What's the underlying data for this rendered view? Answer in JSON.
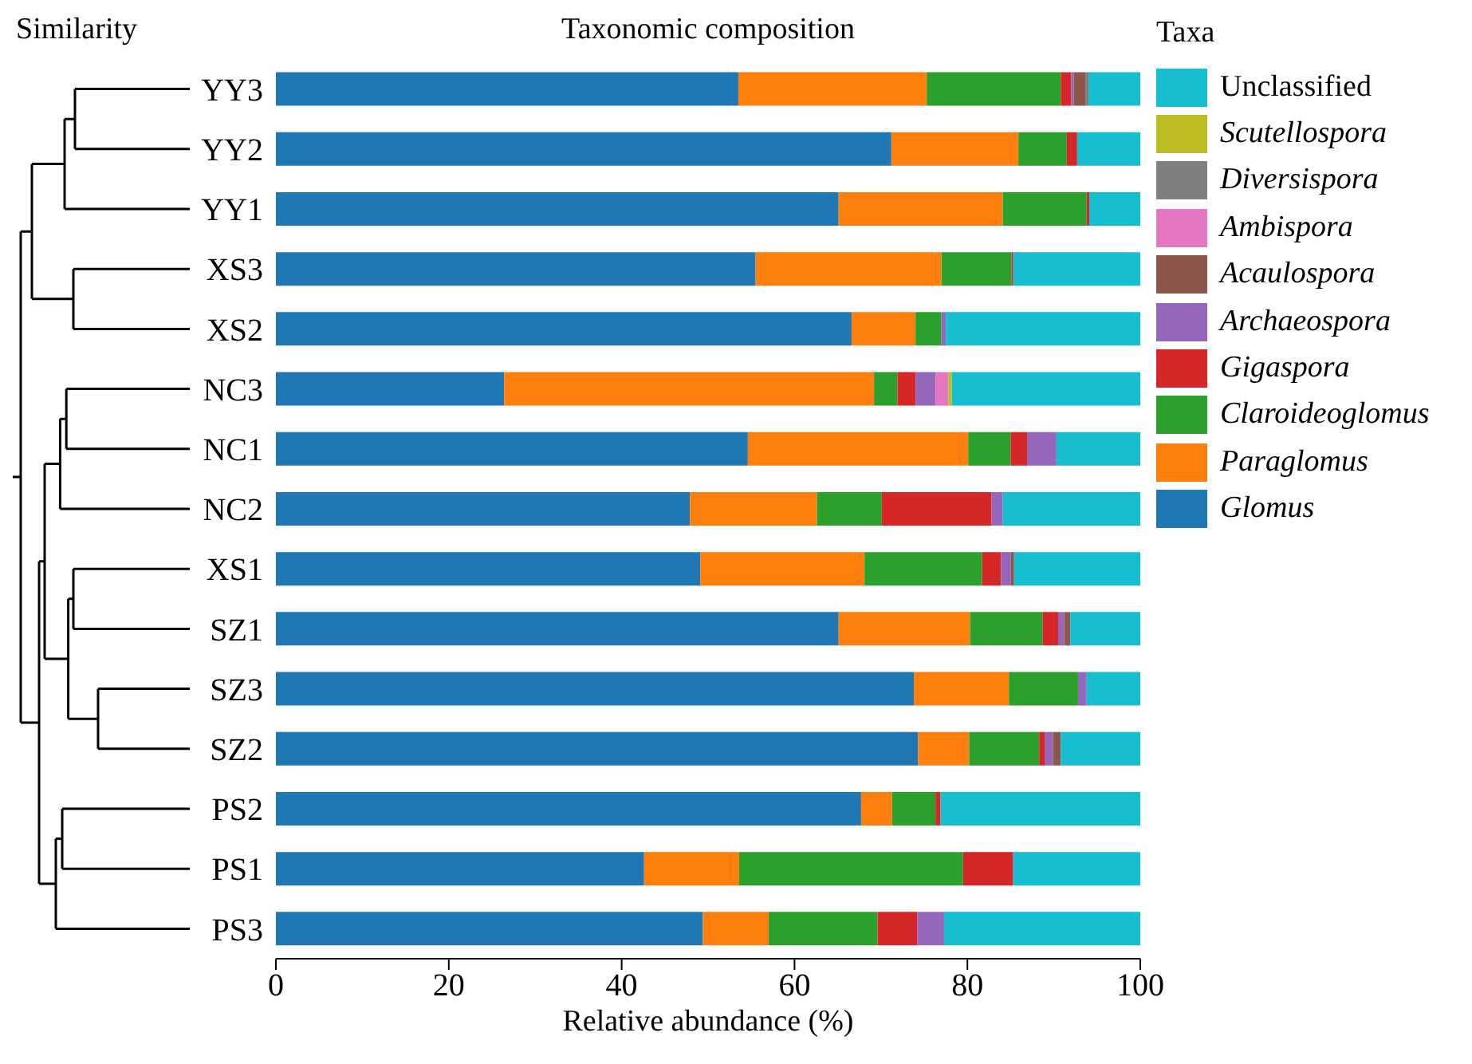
{
  "chart_data": {
    "type": "bar",
    "orientation": "horizontal",
    "stacked": true,
    "title": "Taxonomic composition",
    "xlabel": "Relative abundance (%)",
    "legend_title": "Taxa",
    "legend": "right",
    "annotations": [
      "Similarity"
    ],
    "categories": [
      "YY3",
      "YY2",
      "YY1",
      "XS3",
      "XS2",
      "NC3",
      "NC1",
      "NC2",
      "XS1",
      "SZ1",
      "SZ3",
      "SZ2",
      "PS2",
      "PS1",
      "PS3"
    ],
    "xlim": [
      0,
      100
    ],
    "xticks": [
      0,
      20,
      40,
      60,
      80,
      100
    ],
    "grid": false,
    "series": [
      {
        "name": "Glomus",
        "color": "#1f77b4",
        "values": [
          53.5,
          71.2,
          65.1,
          55.5,
          66.6,
          26.4,
          54.6,
          47.9,
          49.1,
          65.1,
          73.8,
          74.3,
          67.7,
          42.6,
          49.4
        ]
      },
      {
        "name": "Paraglomus",
        "color": "#ff7f0e",
        "values": [
          21.8,
          14.7,
          19.0,
          21.5,
          7.4,
          42.8,
          25.5,
          14.7,
          19.0,
          15.2,
          11.0,
          5.9,
          3.6,
          11.0,
          7.6
        ]
      },
      {
        "name": "Claroideoglomus",
        "color": "#2ca02c",
        "values": [
          15.5,
          5.6,
          9.7,
          8.1,
          3.0,
          2.7,
          4.9,
          7.5,
          13.6,
          8.4,
          8.0,
          8.1,
          5.0,
          25.9,
          12.6
        ]
      },
      {
        "name": "Gigaspora",
        "color": "#d62728",
        "values": [
          1.2,
          1.2,
          0.3,
          0.2,
          0,
          2.1,
          1.9,
          12.7,
          2.2,
          1.8,
          0,
          0.7,
          0.6,
          5.8,
          4.6
        ]
      },
      {
        "name": "Archaeospora",
        "color": "#9467bd",
        "values": [
          0.3,
          0,
          0,
          0,
          0.5,
          2.3,
          3.4,
          1.3,
          1.1,
          0.7,
          1.0,
          0.9,
          0,
          0,
          3.1
        ]
      },
      {
        "name": "Acaulospora",
        "color": "#8c564b",
        "values": [
          1.4,
          0,
          0,
          0,
          0,
          0,
          0,
          0,
          0.4,
          0.7,
          0,
          0.9,
          0,
          0,
          0
        ]
      },
      {
        "name": "Ambispora",
        "color": "#e377c2",
        "values": [
          0,
          0,
          0,
          0,
          0,
          1.5,
          0,
          0,
          0,
          0,
          0,
          0,
          0,
          0,
          0
        ]
      },
      {
        "name": "Diversispora",
        "color": "#7f7f7f",
        "values": [
          0.3,
          0,
          0,
          0,
          0,
          0,
          0,
          0,
          0,
          0,
          0,
          0,
          0,
          0,
          0
        ]
      },
      {
        "name": "Scutellospora",
        "color": "#bcbd22",
        "values": [
          0,
          0,
          0,
          0,
          0,
          0.4,
          0,
          0,
          0,
          0,
          0,
          0,
          0,
          0,
          0
        ]
      },
      {
        "name": "Unclassified",
        "color": "#17becf",
        "values": [
          6.0,
          7.3,
          5.9,
          14.7,
          22.5,
          21.8,
          9.7,
          15.9,
          14.6,
          8.1,
          6.2,
          9.2,
          23.1,
          14.7,
          22.7
        ]
      }
    ]
  }
}
